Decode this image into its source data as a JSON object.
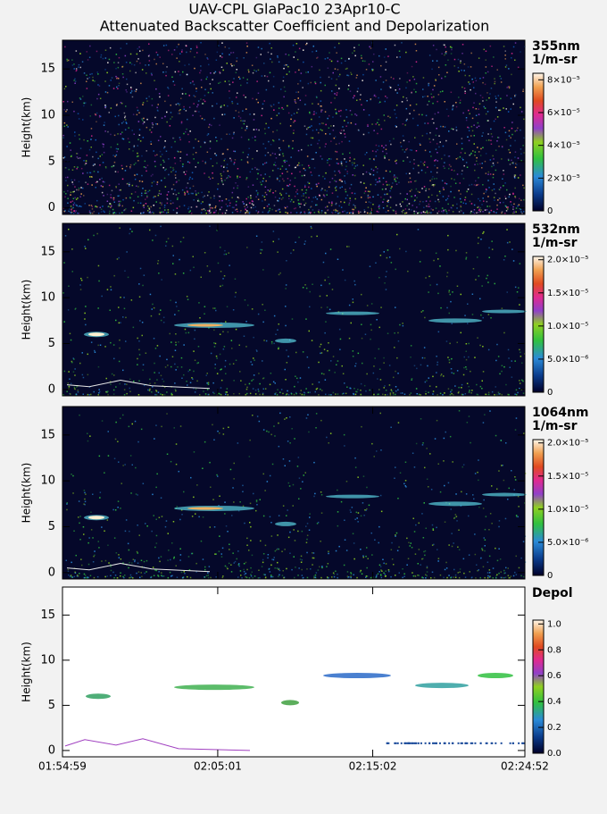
{
  "title": "UAV-CPL GlaPac10 23Apr10-C",
  "subtitle": "Attenuated Backscatter Coefficient and Depolarization",
  "chart_data": [
    {
      "type": "heatmap",
      "ylabel": "Height(km)",
      "ylim": [
        -0.7,
        18.1
      ],
      "yticks": [
        0,
        5,
        10,
        15
      ],
      "colorbar": {
        "label": "355nm",
        "units": "1/m-sr",
        "clim": [
          0,
          8.4e-05
        ],
        "ticks": [
          0,
          {
            "value": 2e-05,
            "label": "2×10⁻⁵"
          },
          {
            "value": 4e-05,
            "label": "4×10⁻⁵"
          },
          {
            "value": 6e-05,
            "label": "6×10⁻⁵"
          },
          {
            "value": 8e-05,
            "label": "8×10⁻⁵"
          }
        ]
      }
    },
    {
      "type": "heatmap",
      "ylabel": "Height(km)",
      "ylim": [
        -0.7,
        18.1
      ],
      "yticks": [
        0,
        5,
        10,
        15
      ],
      "colorbar": {
        "label": "532nm",
        "units": "1/m-sr",
        "clim": [
          0,
          2.05e-05
        ],
        "ticks": [
          0,
          {
            "value": 5e-06,
            "label": "5.0×10⁻⁶"
          },
          {
            "value": 1e-05,
            "label": "1.0×10⁻⁵"
          },
          {
            "value": 1.5e-05,
            "label": "1.5×10⁻⁵"
          },
          {
            "value": 2e-05,
            "label": "2.0×10⁻⁵"
          }
        ]
      }
    },
    {
      "type": "heatmap",
      "ylabel": "Height(km)",
      "ylim": [
        -0.7,
        18.1
      ],
      "yticks": [
        0,
        5,
        10,
        15
      ],
      "colorbar": {
        "label": "1064nm",
        "units": "1/m-sr",
        "clim": [
          0,
          2.05e-05
        ],
        "ticks": [
          0,
          {
            "value": 5e-06,
            "label": "5.0×10⁻⁶"
          },
          {
            "value": 1e-05,
            "label": "1.0×10⁻⁵"
          },
          {
            "value": 1.5e-05,
            "label": "1.5×10⁻⁵"
          },
          {
            "value": 2e-05,
            "label": "2.0×10⁻⁵"
          }
        ]
      }
    },
    {
      "type": "heatmap",
      "ylabel": "Height(km)",
      "ylim": [
        -0.7,
        18.1
      ],
      "yticks": [
        0,
        5,
        10,
        15
      ],
      "xlim": [
        "01:54:59",
        "02:24:52"
      ],
      "xticks": [
        "01:54:59",
        "02:05:01",
        "02:15:02",
        "02:24:52"
      ],
      "colorbar": {
        "label": "Depol",
        "clim": [
          0,
          1.03
        ],
        "ticks": [
          {
            "value": 0,
            "label": "0.0"
          },
          0.2,
          0.4,
          0.6,
          0.8,
          {
            "value": 1,
            "label": "1.0"
          }
        ]
      }
    }
  ]
}
